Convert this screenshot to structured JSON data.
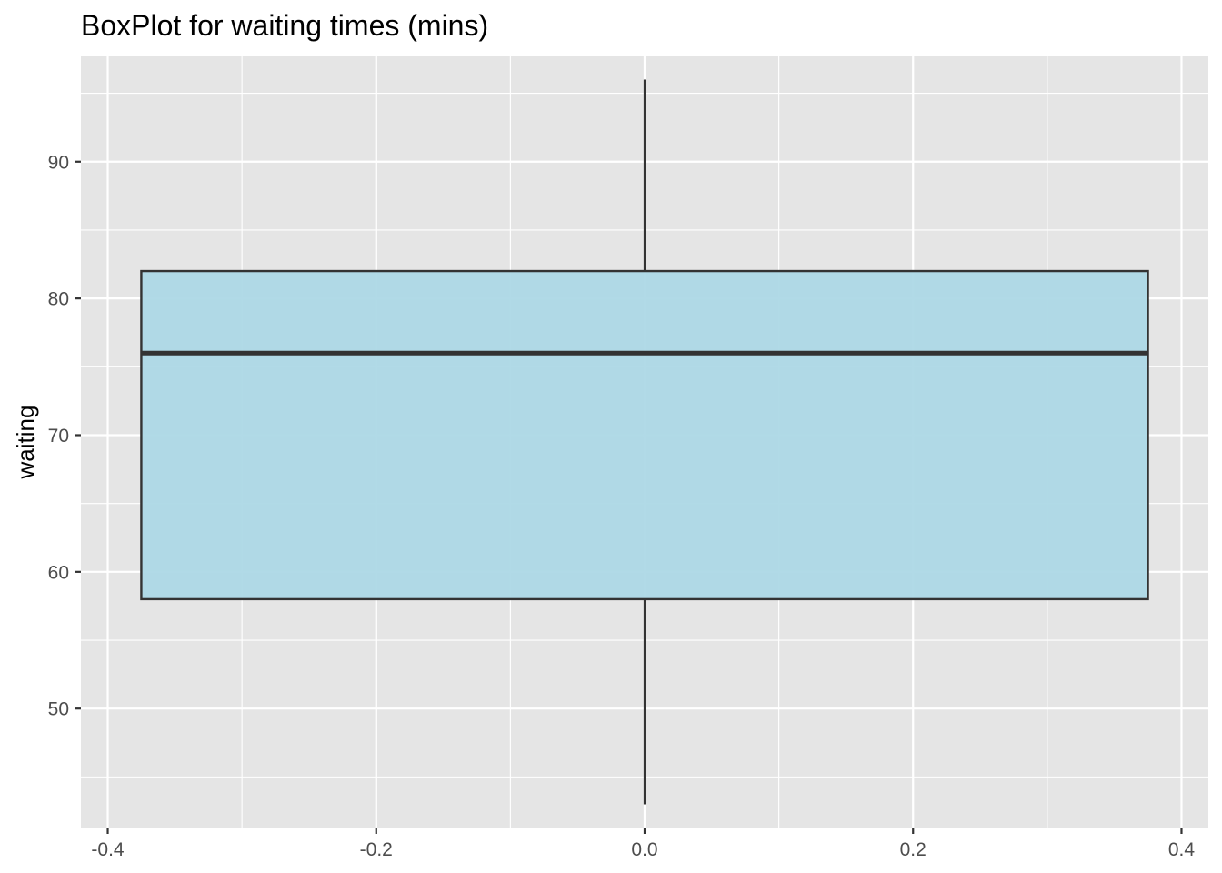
{
  "chart_data": {
    "type": "box",
    "title": "BoxPlot for waiting times (mins)",
    "xlabel": "",
    "ylabel": "waiting",
    "xlim": [
      -0.42,
      0.42
    ],
    "ylim": [
      41.3,
      97.7
    ],
    "x_ticks": [
      -0.4,
      -0.2,
      0.0,
      0.2,
      0.4
    ],
    "x_tick_labels": [
      "-0.4",
      "-0.2",
      "0.0",
      "0.2",
      "0.4"
    ],
    "y_ticks": [
      50,
      60,
      70,
      80,
      90
    ],
    "y_tick_labels": [
      "50",
      "60",
      "70",
      "80",
      "90"
    ],
    "grid": true,
    "boxes": [
      {
        "x": 0,
        "width": 0.75,
        "min": 43,
        "q1": 58,
        "median": 76,
        "q3": 82,
        "max": 96
      }
    ],
    "colors": {
      "panel_background": "#e5e5e5",
      "grid": "#ffffff",
      "box_fill": "#add8e6",
      "box_outline": "#333333",
      "tick_text": "#4d4d4d",
      "axis_ticks": "#333333"
    }
  }
}
